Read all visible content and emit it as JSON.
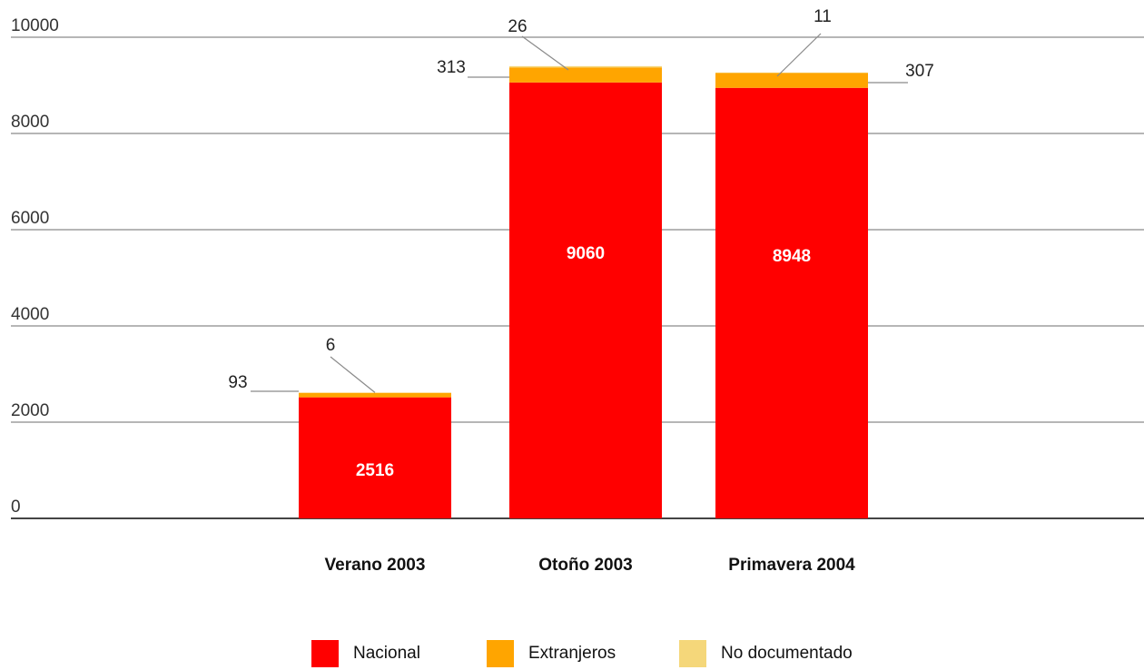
{
  "chart_data": {
    "type": "bar",
    "stacked": true,
    "categories": [
      "Verano 2003",
      "Otoño 2003",
      "Primavera 2004"
    ],
    "series": [
      {
        "name": "Nacional",
        "values": [
          2516,
          9060,
          8948
        ],
        "color": "#ff0000"
      },
      {
        "name": "Extranjeros",
        "values": [
          93,
          313,
          307
        ],
        "color": "#ffa500"
      },
      {
        "name": "No documentado",
        "values": [
          6,
          26,
          11
        ],
        "color": "#f5d77a"
      }
    ],
    "data_labels": {
      "Nacional": [
        "2516",
        "9060",
        "8948"
      ],
      "Extranjeros": [
        "93",
        "313",
        "307"
      ],
      "No documentado": [
        "6",
        "26",
        "11"
      ]
    },
    "yticks": [
      "0",
      "2000",
      "4000",
      "6000",
      "8000",
      "10000"
    ],
    "ylim": [
      0,
      10000
    ],
    "grid": true,
    "legend": "bottom"
  }
}
